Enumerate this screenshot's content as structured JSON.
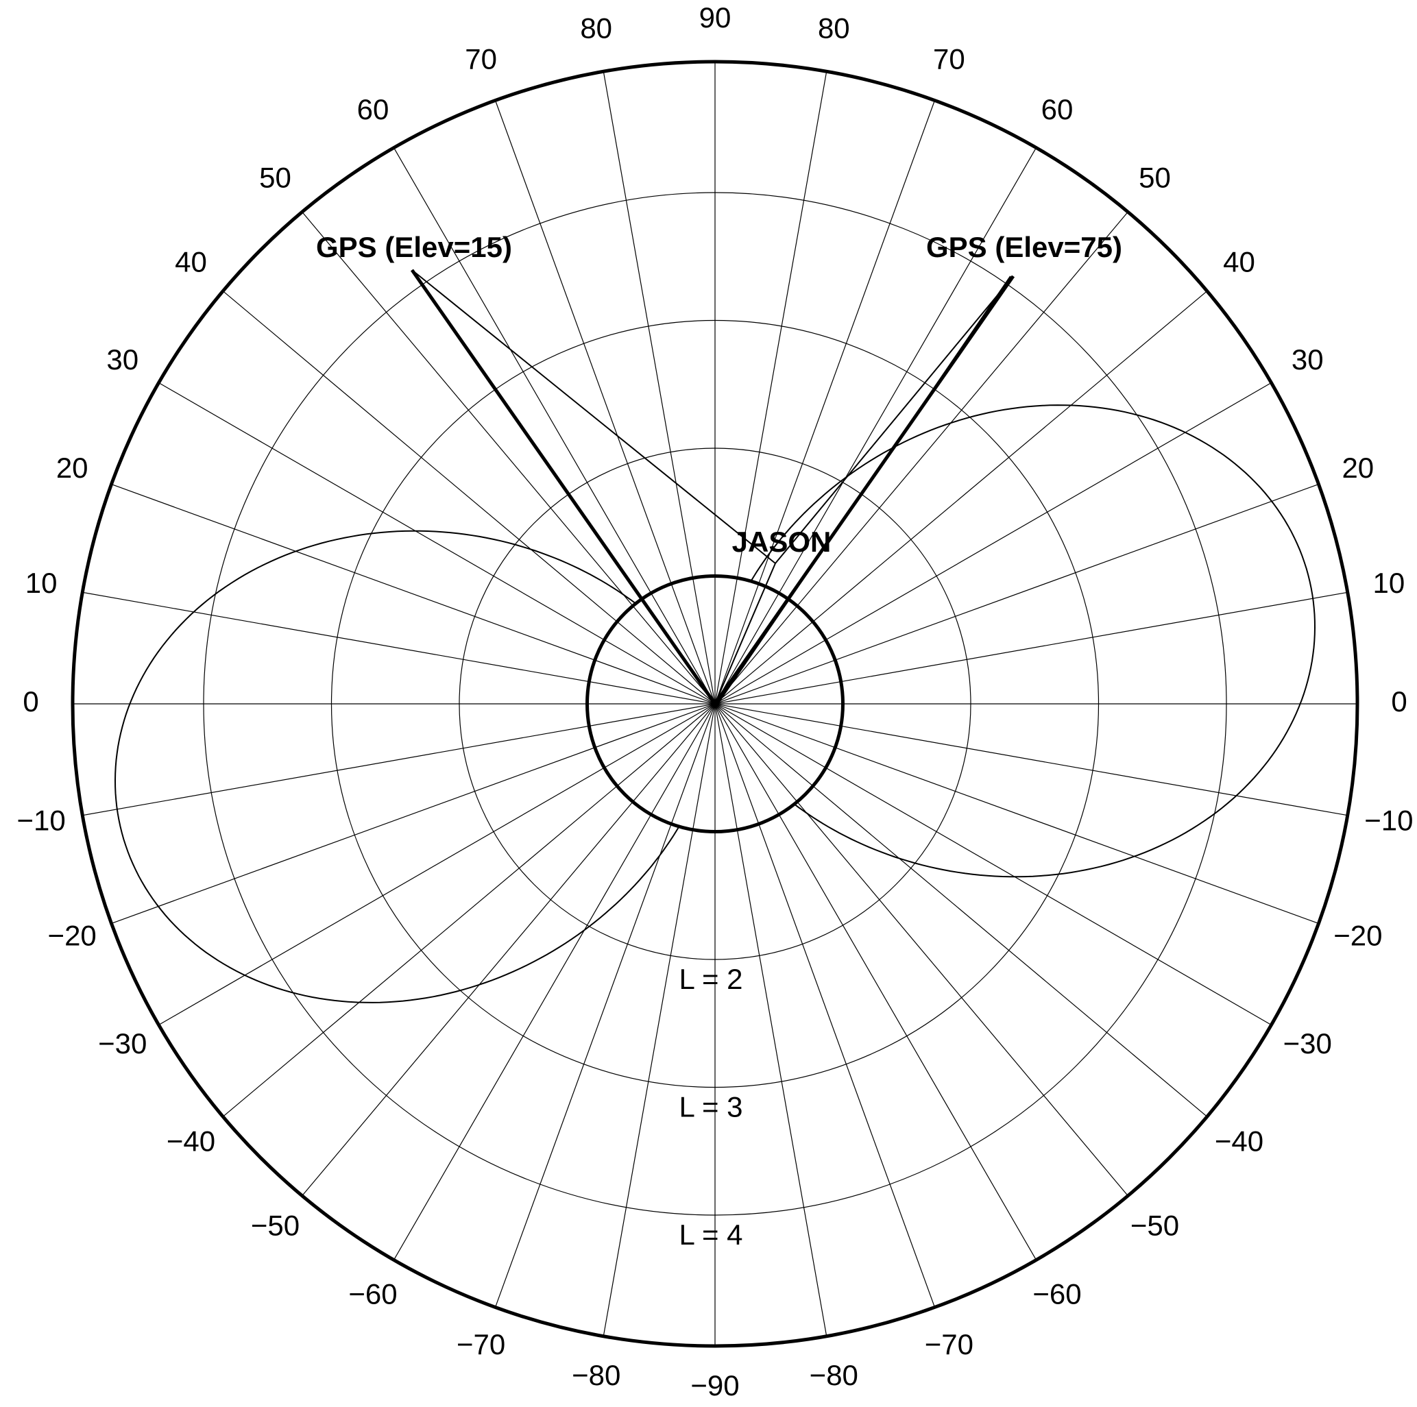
{
  "diagram": {
    "top_label": "90",
    "bottom_label": "−90",
    "left_labels": [
      "80",
      "70",
      "60",
      "50",
      "40",
      "30",
      "20",
      "10",
      "0",
      "−10",
      "−20",
      "−30",
      "−40",
      "−50",
      "−60",
      "−70",
      "−80"
    ],
    "right_labels": [
      "80",
      "70",
      "60",
      "50",
      "40",
      "30",
      "20",
      "10",
      "0",
      "−10",
      "−20",
      "−30",
      "−40",
      "−50",
      "−60",
      "−70",
      "−80"
    ],
    "shell_labels": [
      "L = 2",
      "L = 3",
      "L = 4"
    ],
    "satellites": [
      {
        "label": "GPS (Elev=15)"
      },
      {
        "label": "GPS (Elev=75)"
      },
      {
        "label": "JASON"
      }
    ]
  }
}
